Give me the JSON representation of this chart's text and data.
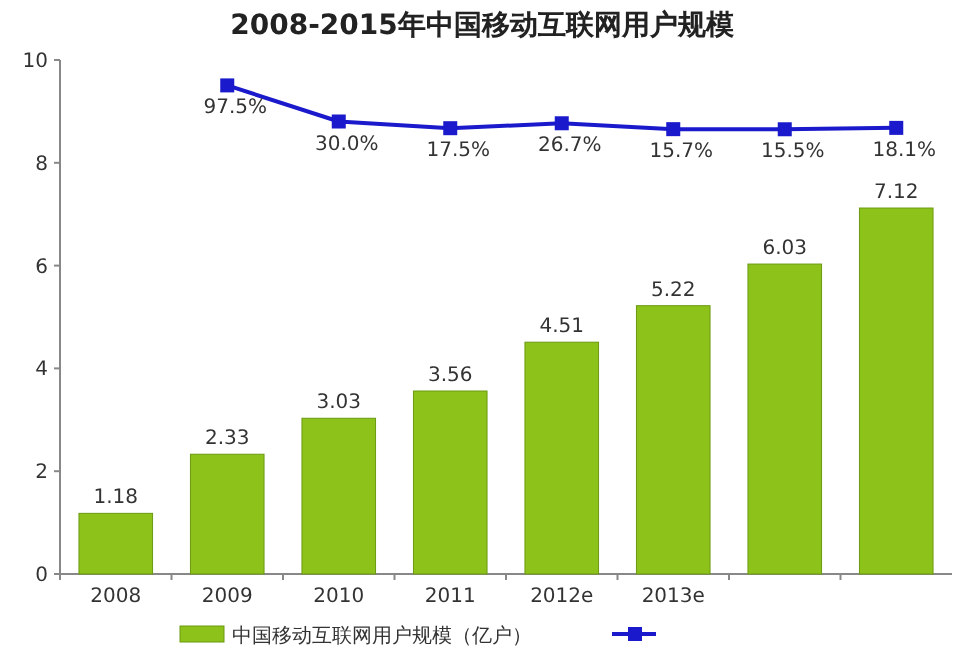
{
  "chart_data": {
    "type": "bar",
    "title": "2008-2015年中国移动互联网用户规模",
    "categories": [
      "2008",
      "2009",
      "2010",
      "2011",
      "2012e",
      "2013e",
      null,
      null
    ],
    "ylim": [
      0,
      10
    ],
    "yticks": [
      0,
      2,
      4,
      6,
      8,
      10
    ],
    "y2lim": [
      -816,
      145
    ],
    "legend": "bottom",
    "grid": false,
    "series": [
      {
        "name": "中国移动互联网用户规模（亿户）",
        "color": "#8cc21a",
        "values": [
          1.18,
          2.33,
          3.03,
          3.56,
          4.51,
          5.22,
          6.03,
          7.12
        ],
        "value_labels": [
          "1.18",
          "2.33",
          "3.03",
          "3.56",
          "4.51",
          "5.22",
          "6.03",
          "7.12"
        ]
      },
      {
        "type": "line",
        "axis": "y2",
        "color": "#1a1acc",
        "marker": "square",
        "values": [
          null,
          97.5,
          30.0,
          17.5,
          26.7,
          15.7,
          15.5,
          18.1
        ],
        "value_labels": [
          null,
          "97.5%",
          "30.0%",
          "17.5%",
          "26.7%",
          "15.7%",
          "15.5%",
          "18.1%"
        ]
      }
    ]
  }
}
